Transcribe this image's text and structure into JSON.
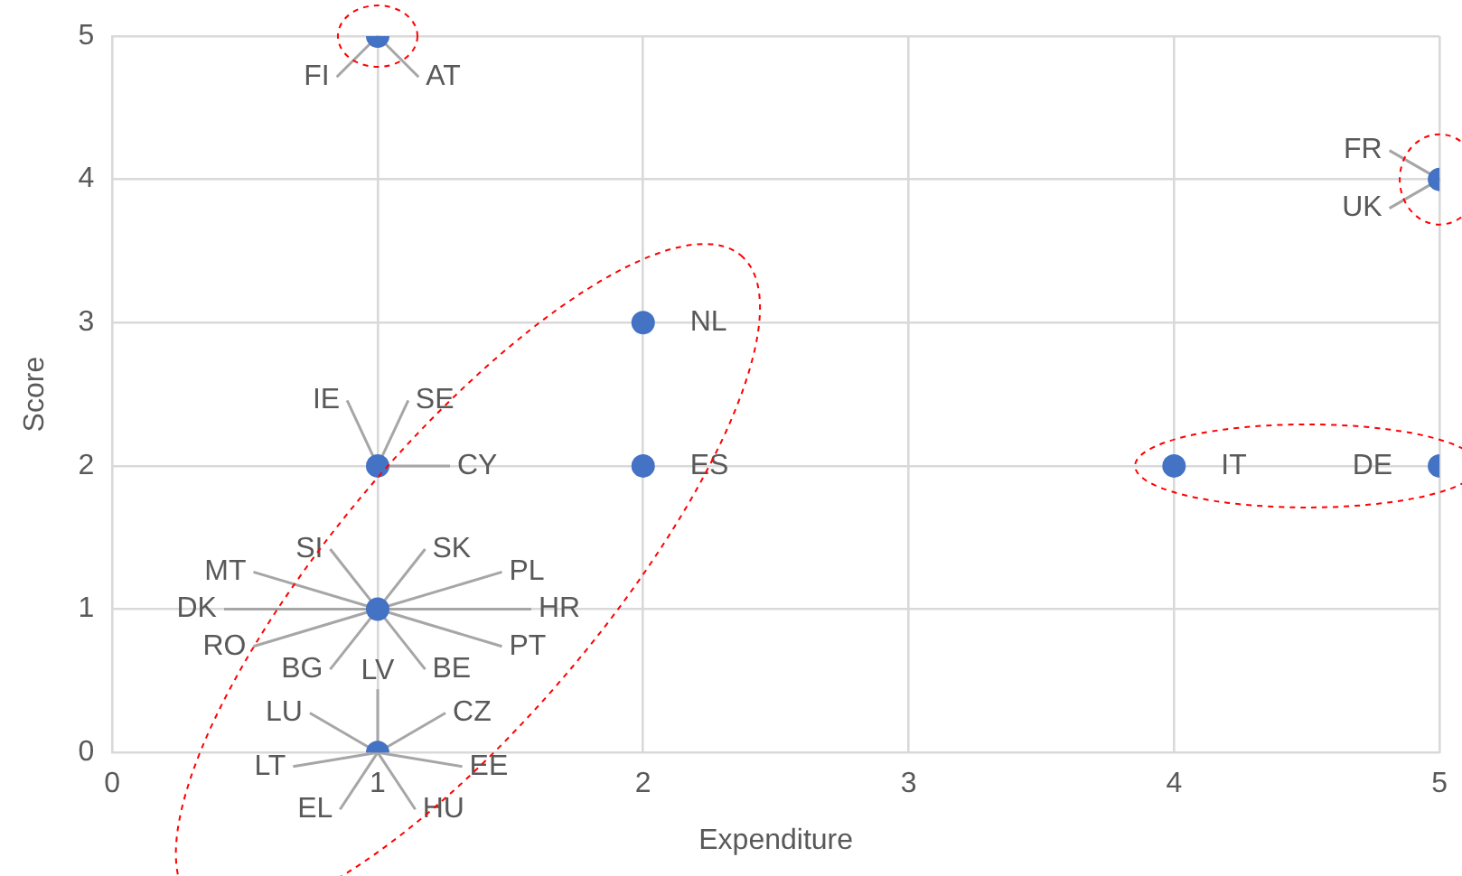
{
  "chart_data": {
    "type": "scatter",
    "xlabel": "Expenditure",
    "ylabel": "Score",
    "x": [
      1,
      5,
      2,
      1,
      2,
      4,
      5,
      1,
      1
    ],
    "values": [
      5,
      4,
      3,
      2,
      2,
      2,
      2,
      1,
      0
    ],
    "color": "#4472c4",
    "marker": "circle",
    "grid": true,
    "xlim": [
      0,
      5
    ],
    "ylim": [
      0,
      5
    ],
    "xticks": [
      0,
      1,
      2,
      3,
      4,
      5
    ],
    "yticks": [
      0,
      1,
      2,
      3,
      4,
      5
    ],
    "annotations": [
      {
        "text": "FI",
        "x": 1,
        "y": 5
      },
      {
        "text": "AT",
        "x": 1,
        "y": 5
      },
      {
        "text": "FR",
        "x": 5,
        "y": 4
      },
      {
        "text": "UK",
        "x": 5,
        "y": 4
      },
      {
        "text": "NL",
        "x": 2,
        "y": 3
      },
      {
        "text": "IE",
        "x": 1,
        "y": 2
      },
      {
        "text": "SE",
        "x": 1,
        "y": 2
      },
      {
        "text": "CY",
        "x": 1,
        "y": 2
      },
      {
        "text": "ES",
        "x": 2,
        "y": 2
      },
      {
        "text": "IT",
        "x": 4,
        "y": 2
      },
      {
        "text": "DE",
        "x": 5,
        "y": 2
      },
      {
        "text": "SK",
        "x": 1,
        "y": 1
      },
      {
        "text": "PL",
        "x": 1,
        "y": 1
      },
      {
        "text": "HR",
        "x": 1,
        "y": 1
      },
      {
        "text": "PT",
        "x": 1,
        "y": 1
      },
      {
        "text": "BE",
        "x": 1,
        "y": 1
      },
      {
        "text": "BG",
        "x": 1,
        "y": 1
      },
      {
        "text": "RO",
        "x": 1,
        "y": 1
      },
      {
        "text": "DK",
        "x": 1,
        "y": 1
      },
      {
        "text": "MT",
        "x": 1,
        "y": 1
      },
      {
        "text": "SI",
        "x": 1,
        "y": 1
      },
      {
        "text": "LV",
        "x": 1,
        "y": 0
      },
      {
        "text": "CZ",
        "x": 1,
        "y": 0
      },
      {
        "text": "EE",
        "x": 1,
        "y": 0
      },
      {
        "text": "HU",
        "x": 1,
        "y": 0
      },
      {
        "text": "EL",
        "x": 1,
        "y": 0
      },
      {
        "text": "LT",
        "x": 1,
        "y": 0
      },
      {
        "text": "LU",
        "x": 1,
        "y": 0
      }
    ]
  }
}
